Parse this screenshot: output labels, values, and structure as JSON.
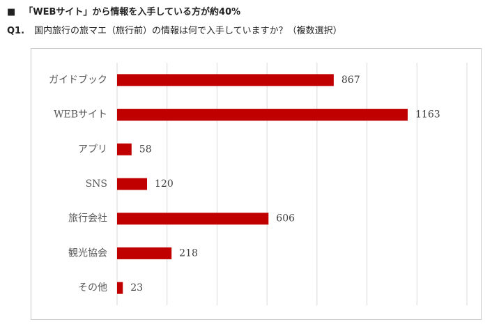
{
  "heading": {
    "marker": "■",
    "text": "「WEBサイト」から情報を入手している方が約40%"
  },
  "question": {
    "number": "Q1.",
    "text": "国内旅行の旅マエ（旅行前）の情報は何で入手していますか？（複数選択）"
  },
  "chart_data": {
    "type": "bar",
    "orientation": "horizontal",
    "categories": [
      "ガイドブック",
      "WEBサイト",
      "アプリ",
      "SNS",
      "旅行会社",
      "観光協会",
      "その他"
    ],
    "values": [
      867,
      1163,
      58,
      120,
      606,
      218,
      23
    ],
    "xlim": [
      0,
      1400
    ],
    "grid": true,
    "bar_color": "#c00000",
    "legend": "none"
  }
}
